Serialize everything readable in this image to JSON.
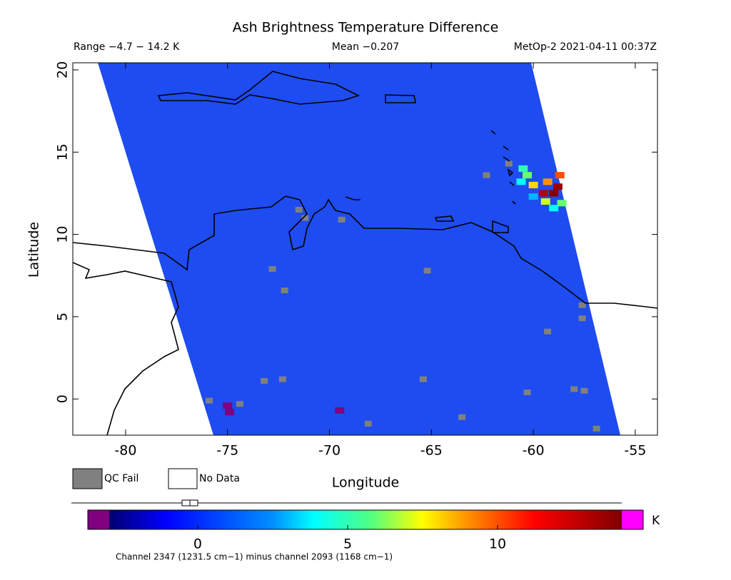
{
  "chart_data": {
    "type": "map",
    "title": "Ash Brightness Temperature Difference",
    "range_label": "Range −4.7 − 14.2 K",
    "mean_label": "Mean −0.207",
    "source_label": "MetOp-2 2021-04-11 00:37Z",
    "x_label": "Longitude",
    "y_label": "Latitude",
    "xlim": [
      -82.59,
      -53.91
    ],
    "ylim": [
      -2.2,
      20.43
    ],
    "xticks": [
      -80,
      -75,
      -70,
      -65,
      -60,
      -55
    ],
    "yticks": [
      0,
      5,
      10,
      15,
      20
    ],
    "legend": {
      "qc_fail": "QC Fail",
      "no_data": "No Data",
      "qc_color": "#808080"
    },
    "colorbar": {
      "lim": [
        -2.95,
        14.14
      ],
      "ticks": [
        0,
        5,
        10
      ],
      "unit": "K",
      "caption": "Channel 2347 (1231.5 cm−1) minus channel 2093 (1168 cm−1)"
    },
    "cells": {
      "lon": [
        -59.0,
        -58.8,
        -59.5,
        -59.3,
        -60.0,
        -60.3,
        -60.5,
        -58.6,
        -59.0,
        -60.6,
        -59.4,
        -58.7,
        -60.0,
        -75.0,
        -74.9,
        -69.5
      ],
      "lat": [
        12.5,
        12.9,
        12.5,
        13.2,
        13.0,
        13.6,
        14.0,
        11.9,
        11.6,
        13.2,
        12.0,
        13.6,
        12.3,
        -0.4,
        -0.8,
        -0.7
      ],
      "values": [
        14,
        13.5,
        13,
        9,
        8,
        6,
        5,
        6,
        4,
        4,
        7,
        10,
        3,
        -3.2,
        -3.5,
        -3.4
      ]
    },
    "qc_fail": {
      "lon": [
        -61.2,
        -62.3,
        -71.5,
        -71.2,
        -69.4,
        -72.8,
        -72.2,
        -65.2,
        -57.6,
        -57.6,
        -59.3,
        -73.2,
        -72.3,
        -74.4,
        -57.5,
        -58.0,
        -60.3,
        -65.4,
        -68.1,
        -63.5,
        -56.9,
        -75.9
      ],
      "lat": [
        14.3,
        13.6,
        11.5,
        11.0,
        10.9,
        7.9,
        6.6,
        7.8,
        4.9,
        5.7,
        4.1,
        1.1,
        1.2,
        -0.3,
        0.5,
        0.6,
        0.4,
        1.2,
        -1.5,
        -1.1,
        -1.8,
        -0.1
      ]
    }
  }
}
